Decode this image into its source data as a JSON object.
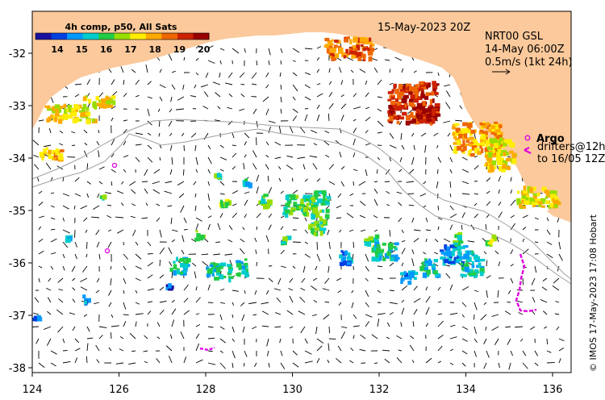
{
  "map": {
    "date_title": "15-May-2023 20Z",
    "product_lines": [
      "NRT00 GSL",
      "14-May 06:00Z",
      "0.5m/s (1kt 24h)"
    ],
    "colorbar": {
      "title": "4h comp, p50, All Sats",
      "ticks": [
        "14",
        "15",
        "16",
        "17",
        "18",
        "19",
        "20"
      ],
      "colors": [
        "#1a10a0",
        "#0040e0",
        "#0099ff",
        "#00cccc",
        "#22cc44",
        "#99dd00",
        "#ffee00",
        "#ffaa00",
        "#ee6600",
        "#cc2200",
        "#990000"
      ]
    },
    "legend": {
      "argo_label": "Argo",
      "drifters_label": "drifters@12h",
      "drifters_range": "to 16/05 12Z"
    },
    "credit": "© IMOS 17-May-2023 17:08 Hobart",
    "x_ticks": [
      "124",
      "126",
      "128",
      "130",
      "132",
      "134",
      "136"
    ],
    "y_ticks": [
      "-32",
      "-33",
      "-34",
      "-35",
      "-36",
      "-37",
      "-38"
    ],
    "colors": {
      "land": "#fbc99b",
      "argo": "#e000e0",
      "contour": "#a0a0a0"
    }
  }
}
